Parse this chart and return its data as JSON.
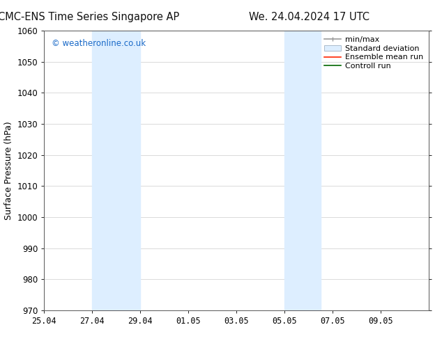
{
  "title_left": "CMC-ENS Time Series Singapore AP",
  "title_right": "We. 24.04.2024 17 UTC",
  "ylabel": "Surface Pressure (hPa)",
  "ylim": [
    970,
    1060
  ],
  "yticks": [
    970,
    980,
    990,
    1000,
    1010,
    1020,
    1030,
    1040,
    1050,
    1060
  ],
  "xlim_start": 0,
  "xlim_end": 16,
  "xtick_labels": [
    "25.04",
    "27.04",
    "29.04",
    "01.05",
    "03.05",
    "05.05",
    "07.05",
    "09.05"
  ],
  "xtick_positions": [
    0,
    2,
    4,
    6,
    8,
    10,
    12,
    14
  ],
  "shaded_regions": [
    {
      "xmin": 2,
      "xmax": 4,
      "color": "#ddeeff"
    },
    {
      "xmin": 10,
      "xmax": 11.5,
      "color": "#ddeeff"
    }
  ],
  "background_color": "#ffffff",
  "plot_bg_color": "#ffffff",
  "grid_color": "#cccccc",
  "watermark_text": "© weatheronline.co.uk",
  "watermark_color": "#1a6ac8",
  "legend_items": [
    {
      "label": "min/max",
      "color": "#aaaaaa",
      "style": "line_with_caps"
    },
    {
      "label": "Standard deviation",
      "color": "#ddeeff",
      "style": "filled_box"
    },
    {
      "label": "Ensemble mean run",
      "color": "#ff0000",
      "style": "line"
    },
    {
      "label": "Controll run",
      "color": "#007700",
      "style": "line"
    }
  ],
  "title_fontsize": 10.5,
  "axis_label_fontsize": 9,
  "tick_fontsize": 8.5,
  "legend_fontsize": 8,
  "fig_width": 6.34,
  "fig_height": 4.9,
  "fig_dpi": 100
}
